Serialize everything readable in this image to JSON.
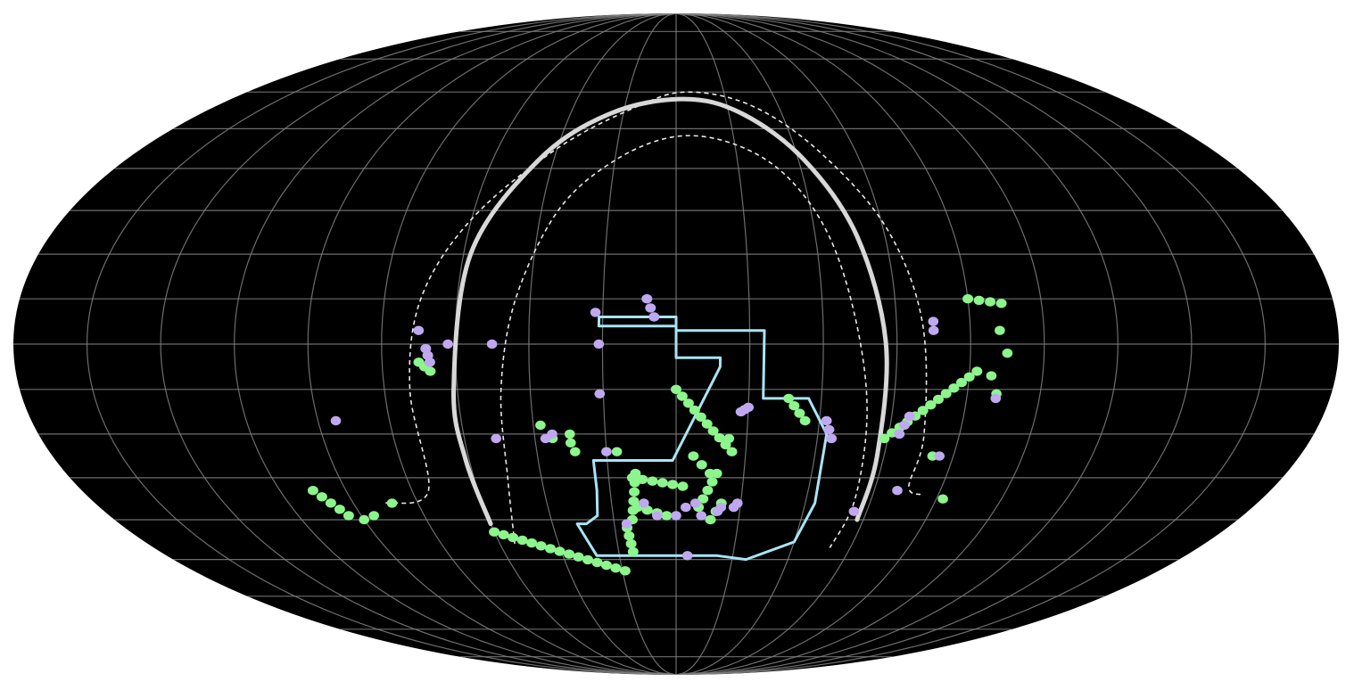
{
  "map": {
    "projection": "mollweide",
    "colors": {
      "background": "#000000",
      "graticule": "#808080",
      "plane": "#d8d8d8",
      "band": "#e8e8e8",
      "footprint": "#a8e4f5",
      "series_a": "#8cf58c",
      "series_b": "#c0a8f0"
    },
    "graticule": {
      "longitude_step_deg": 20,
      "latitude_step_deg": 10
    },
    "footprint": [
      [
        -32,
        -41
      ],
      [
        -28,
        -49
      ],
      [
        14.5,
        -49
      ],
      [
        25,
        -50
      ],
      [
        40,
        -45.5
      ],
      [
        43,
        -36
      ],
      [
        42.5,
        -20
      ],
      [
        36.5,
        -12
      ],
      [
        24,
        -12
      ],
      [
        24,
        3
      ],
      [
        0,
        3
      ],
      [
        0,
        6
      ],
      [
        -21,
        6
      ],
      [
        -21,
        4
      ],
      [
        0,
        4
      ],
      [
        0,
        -3
      ],
      [
        12,
        -3
      ],
      [
        12,
        -5
      ],
      [
        -1,
        -26
      ],
      [
        -24,
        -26
      ],
      [
        -24,
        -33
      ],
      [
        -25,
        -39
      ],
      [
        -29,
        -41
      ]
    ],
    "series": [
      {
        "color_key": "series_a",
        "tracks": [
          [
            [
              0,
              -10
            ],
            [
              16,
              -24
            ]
          ],
          [
            [
              5,
              -25
            ],
            [
              10,
              -29
            ]
          ],
          [
            [
              7,
              -37
            ],
            [
              12,
              -29
            ]
          ],
          [
            [
              -13,
              -30
            ],
            [
              2,
              -32
            ]
          ],
          [
            [
              -12,
              -37
            ],
            [
              -3,
              -39
            ]
          ],
          [
            [
              11,
              -40
            ],
            [
              14,
              -36
            ]
          ],
          [
            [
              -12,
              -29
            ],
            [
              -14,
              -40
            ]
          ],
          [
            [
              31,
              -12
            ],
            [
              36,
              -17
            ]
          ],
          [
            [
              -70,
              -4
            ],
            [
              -67,
              -6
            ]
          ],
          [
            [
              59,
              -21
            ],
            [
              82,
              -6
            ]
          ],
          [
            [
              80,
              10
            ],
            [
              89,
              9
            ]
          ],
          [
            [
              -110,
              -33
            ],
            [
              -104,
              -39
            ]
          ],
          [
            [
              -60,
              -43
            ],
            [
              -19,
              -53
            ]
          ],
          [
            [
              -16,
              -42
            ],
            [
              -15,
              -48
            ]
          ]
        ],
        "points": [
          [
            -38,
            -18
          ],
          [
            -35,
            -21
          ],
          [
            -30,
            -20
          ],
          [
            -30,
            -22
          ],
          [
            -29,
            -24
          ],
          [
            -17,
            -24
          ],
          [
            15,
            -21
          ],
          [
            -88,
            -36
          ],
          [
            -96,
            -39
          ],
          [
            -100,
            -40
          ],
          [
            86,
            -7
          ],
          [
            88,
            3
          ],
          [
            90,
            -2
          ],
          [
            88,
            -11
          ],
          [
            74,
            -25
          ],
          [
            82,
            -35
          ]
        ]
      },
      {
        "color_key": "series_b",
        "tracks": [
          [
            [
              -8,
              10
            ],
            [
              -6,
              6
            ]
          ],
          [
            [
              -68,
              -1
            ],
            [
              -67,
              -4
            ]
          ],
          [
            [
              18,
              -15
            ],
            [
              20,
              -14
            ]
          ],
          [
            [
              44,
              -21
            ],
            [
              42,
              -17
            ]
          ],
          [
            [
              63,
              -20
            ],
            [
              65,
              -16
            ]
          ]
        ],
        "points": [
          [
            -22,
            7
          ],
          [
            -21,
            0
          ],
          [
            -21,
            -11
          ],
          [
            -20,
            -24
          ],
          [
            -70,
            3
          ],
          [
            -62,
            0
          ],
          [
            -50,
            0
          ],
          [
            -35,
            -20
          ],
          [
            -37,
            -21
          ],
          [
            -51,
            -21
          ],
          [
            -95,
            -17
          ],
          [
            -10,
            -36
          ],
          [
            0,
            -39
          ],
          [
            3,
            -37
          ],
          [
            6,
            -36
          ],
          [
            8,
            -39
          ],
          [
            13,
            -38
          ],
          [
            14,
            -37
          ],
          [
            18,
            -37
          ],
          [
            19,
            -36
          ],
          [
            -6,
            -39
          ],
          [
            4,
            -49
          ],
          [
            56,
            -38
          ],
          [
            70,
            5
          ],
          [
            70,
            3
          ],
          [
            76,
            -25
          ],
          [
            67,
            -33
          ],
          [
            88,
            -12
          ],
          [
            -16,
            -41
          ]
        ]
      }
    ],
    "plane": [
      [
        -60,
        -41
      ],
      [
        -61,
        -26
      ],
      [
        -61,
        -10
      ],
      [
        -58,
        20
      ],
      [
        -45,
        42
      ],
      [
        -25,
        54
      ],
      [
        3,
        58
      ],
      [
        25,
        54
      ],
      [
        42,
        42
      ],
      [
        52,
        24
      ],
      [
        57,
        0
      ],
      [
        58,
        -25
      ],
      [
        58,
        -40
      ]
    ],
    "band_outer": [
      [
        -90,
        -36
      ],
      [
        -75,
        -33
      ],
      [
        -73,
        -10
      ],
      [
        -70,
        10
      ],
      [
        -60,
        28
      ],
      [
        -40,
        45
      ],
      [
        -15,
        56
      ],
      [
        5,
        60
      ],
      [
        30,
        56
      ],
      [
        48,
        44
      ],
      [
        61,
        26
      ],
      [
        67,
        5
      ],
      [
        70,
        -20
      ],
      [
        70,
        -32
      ],
      [
        75,
        -34
      ]
    ],
    "band_inner": [
      [
        -55,
        -46
      ],
      [
        -50,
        -30
      ],
      [
        -48,
        -10
      ],
      [
        -44,
        10
      ],
      [
        -35,
        30
      ],
      [
        -20,
        42
      ],
      [
        0,
        48
      ],
      [
        20,
        46
      ],
      [
        35,
        38
      ],
      [
        44,
        24
      ],
      [
        49,
        5
      ],
      [
        53,
        -15
      ],
      [
        55,
        -35
      ],
      [
        53,
        -47
      ]
    ]
  }
}
